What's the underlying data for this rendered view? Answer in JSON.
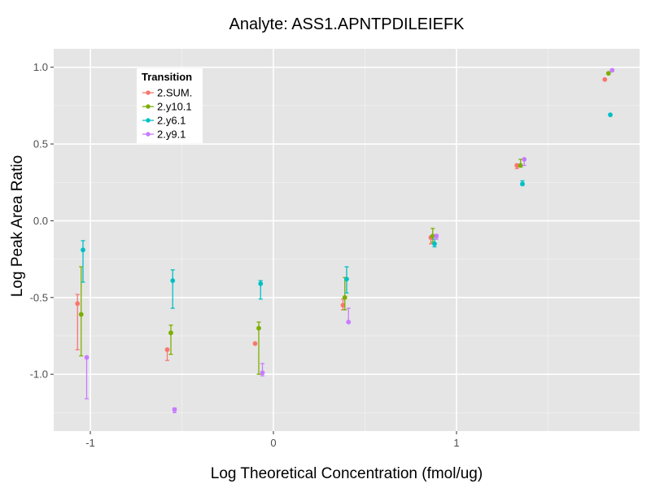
{
  "chart_data": {
    "type": "scatter",
    "title": "Analyte: ASS1.APNTPDILEIEFK",
    "xlabel": "Log Theoretical Concentration (fmol/ug)",
    "ylabel": "Log Peak Area Ratio",
    "xlim": [
      -1.2,
      2.0
    ],
    "ylim": [
      -1.37,
      1.12
    ],
    "x_ticks": [
      -1,
      0,
      1
    ],
    "x_tick_labels": [
      "-1",
      "0",
      "1"
    ],
    "y_ticks": [
      -1.0,
      -0.5,
      0.0,
      0.5,
      1.0
    ],
    "y_tick_labels": [
      "-1.0",
      "-0.5",
      "0.0",
      "0.5",
      "1.0"
    ],
    "grid": true,
    "legend": {
      "title": "Transition",
      "position": "top-left-inside",
      "entries": [
        "2.SUM.",
        "2.y10.1",
        "2.y6.1",
        "2.y9.1"
      ]
    },
    "series": [
      {
        "name": "2.SUM.",
        "color": "#F8766D",
        "points": [
          {
            "x": -1.07,
            "y": -0.54,
            "lo": -0.84,
            "hi": -0.48
          },
          {
            "x": -0.58,
            "y": -0.84,
            "lo": -0.91,
            "hi": -0.84
          },
          {
            "x": -0.1,
            "y": -0.8,
            "lo": -0.8,
            "hi": -0.8
          },
          {
            "x": 0.38,
            "y": -0.55,
            "lo": -0.58,
            "hi": -0.51
          },
          {
            "x": 0.86,
            "y": -0.11,
            "lo": -0.15,
            "hi": -0.1
          },
          {
            "x": 1.33,
            "y": 0.36,
            "lo": 0.34,
            "hi": 0.37
          },
          {
            "x": 1.81,
            "y": 0.92,
            "lo": 0.92,
            "hi": 0.92
          }
        ]
      },
      {
        "name": "2.y10.1",
        "color": "#7CAE00",
        "points": [
          {
            "x": -1.05,
            "y": -0.61,
            "lo": -0.88,
            "hi": -0.3
          },
          {
            "x": -0.56,
            "y": -0.73,
            "lo": -0.87,
            "hi": -0.68
          },
          {
            "x": -0.08,
            "y": -0.7,
            "lo": -1.0,
            "hi": -0.66
          },
          {
            "x": 0.39,
            "y": -0.5,
            "lo": -0.58,
            "hi": -0.37
          },
          {
            "x": 0.87,
            "y": -0.1,
            "lo": -0.14,
            "hi": -0.05
          },
          {
            "x": 1.35,
            "y": 0.36,
            "lo": 0.35,
            "hi": 0.4
          },
          {
            "x": 1.83,
            "y": 0.96,
            "lo": 0.96,
            "hi": 0.96
          }
        ]
      },
      {
        "name": "2.y6.1",
        "color": "#00BFC4",
        "points": [
          {
            "x": -1.04,
            "y": -0.19,
            "lo": -0.4,
            "hi": -0.13
          },
          {
            "x": -0.55,
            "y": -0.39,
            "lo": -0.57,
            "hi": -0.32
          },
          {
            "x": -0.07,
            "y": -0.41,
            "lo": -0.51,
            "hi": -0.39
          },
          {
            "x": 0.4,
            "y": -0.38,
            "lo": -0.47,
            "hi": -0.3
          },
          {
            "x": 0.88,
            "y": -0.15,
            "lo": -0.17,
            "hi": -0.12
          },
          {
            "x": 1.36,
            "y": 0.24,
            "lo": 0.23,
            "hi": 0.26
          },
          {
            "x": 1.84,
            "y": 0.69,
            "lo": 0.69,
            "hi": 0.69
          }
        ]
      },
      {
        "name": "2.y9.1",
        "color": "#C77CFF",
        "points": [
          {
            "x": -1.02,
            "y": -0.89,
            "lo": -1.16,
            "hi": -0.89
          },
          {
            "x": -0.54,
            "y": -1.23,
            "lo": -1.25,
            "hi": -1.22
          },
          {
            "x": -0.06,
            "y": -0.99,
            "lo": -1.01,
            "hi": -0.93
          },
          {
            "x": 0.41,
            "y": -0.66,
            "lo": -0.66,
            "hi": -0.57
          },
          {
            "x": 0.89,
            "y": -0.1,
            "lo": -0.12,
            "hi": -0.09
          },
          {
            "x": 1.37,
            "y": 0.4,
            "lo": 0.36,
            "hi": 0.4
          },
          {
            "x": 1.85,
            "y": 0.98,
            "lo": 0.98,
            "hi": 0.98
          }
        ]
      }
    ]
  }
}
